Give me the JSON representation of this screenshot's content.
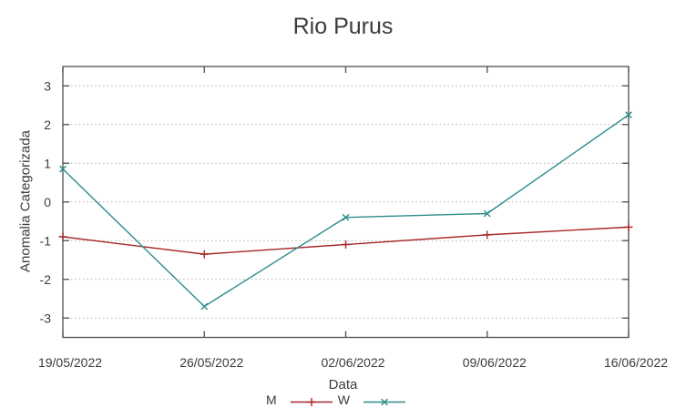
{
  "chart_data": {
    "type": "line",
    "title": "Rio Purus",
    "xlabel": "Data",
    "ylabel": "Anomalia Categorizada",
    "x_tick_labels": [
      "19/05/2022",
      "26/05/2022",
      "02/06/2022",
      "09/06/2022",
      "16/06/2022"
    ],
    "y_ticks": [
      -3,
      -2,
      -1,
      0,
      1,
      2,
      3
    ],
    "ylim": [
      -3.5,
      3.5
    ],
    "grid": {
      "horizontal_only": true,
      "style": "dotted"
    },
    "legend_position": "below-xlabel-centered",
    "series": [
      {
        "name": "M",
        "color": "#a62929",
        "marker": "plus",
        "values": [
          -0.9,
          -1.35,
          -1.1,
          -0.85,
          -0.65
        ]
      },
      {
        "name": "W",
        "color": "#2e8c8c",
        "marker": "cross",
        "values": [
          0.85,
          -2.7,
          -0.4,
          -0.3,
          2.25
        ]
      }
    ],
    "colors": {
      "axis": "#4f4f4f",
      "grid": "#b4b4b4",
      "text": "#3c3c3c",
      "background": "#ffffff"
    }
  }
}
